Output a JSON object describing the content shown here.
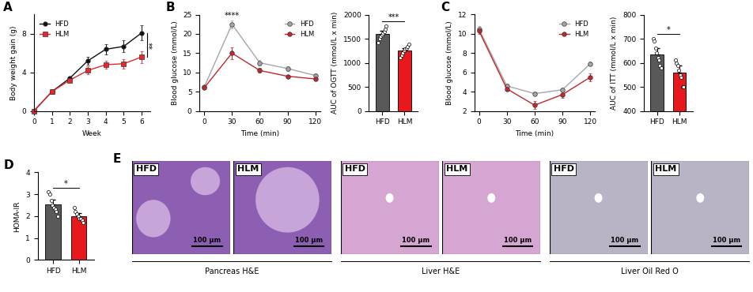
{
  "chart_data": [
    {
      "panel_label": "A",
      "type": "line",
      "x_label": "Week",
      "y_label": "Body weight gain (g)",
      "x": [
        0,
        1,
        2,
        3,
        4,
        5,
        6
      ],
      "xlim": [
        0,
        6.5
      ],
      "xticks": [
        0,
        1,
        2,
        3,
        4,
        5,
        6
      ],
      "ylim": [
        0,
        10
      ],
      "yticks": [
        0,
        4,
        8
      ],
      "legend": "upper left",
      "series": [
        {
          "name": "HFD",
          "color": "#111111",
          "marker": "circle",
          "values": [
            0,
            2.0,
            3.4,
            5.2,
            6.4,
            6.7,
            8.1
          ],
          "errors": [
            0,
            0.2,
            0.2,
            0.4,
            0.5,
            0.6,
            0.8
          ]
        },
        {
          "name": "HLM",
          "color": "#e8282b",
          "marker": "square",
          "values": [
            0,
            2.0,
            3.2,
            4.2,
            4.8,
            4.9,
            5.6
          ],
          "errors": [
            0,
            0.2,
            0.2,
            0.4,
            0.4,
            0.5,
            0.6
          ]
        }
      ],
      "annotation": {
        "text": "**",
        "x": 6
      }
    },
    {
      "panel_label": "B",
      "type": "line",
      "x_label": "Time (min)",
      "y_label": "Blood glucose (mmol/L)",
      "x": [
        0,
        30,
        60,
        90,
        120
      ],
      "xlim": [
        -5,
        125
      ],
      "xticks": [
        0,
        30,
        60,
        90,
        120
      ],
      "ylim": [
        0,
        25
      ],
      "yticks": [
        0,
        5,
        10,
        15,
        20,
        25
      ],
      "legend": "upper right",
      "series": [
        {
          "name": "HFD",
          "color": "#a6a6a6",
          "marker": "circle",
          "values": [
            6.2,
            22.5,
            12.5,
            11.0,
            9.2
          ],
          "errors": [
            0.3,
            1.0,
            0.7,
            0.6,
            0.5
          ]
        },
        {
          "name": "HLM",
          "color": "#c0282b",
          "marker": "circle",
          "values": [
            6.0,
            15.0,
            10.5,
            9.0,
            8.3
          ],
          "errors": [
            0.3,
            1.5,
            0.6,
            0.4,
            0.4
          ]
        }
      ],
      "annotation": {
        "text": "****",
        "x": 30
      }
    },
    {
      "type": "bar",
      "y_label": "AUC of OGTT (mmol/L x min)",
      "categories": [
        "HFD",
        "HLM"
      ],
      "values": [
        1600,
        1250
      ],
      "errors": [
        60,
        50
      ],
      "colors": [
        "#595959",
        "#e8191c"
      ],
      "points": [
        [
          1420,
          1500,
          1550,
          1580,
          1620,
          1650,
          1700,
          1760
        ],
        [
          1100,
          1150,
          1200,
          1250,
          1280,
          1300,
          1330,
          1390
        ]
      ],
      "ylim": [
        0,
        2000
      ],
      "yticks": [
        0,
        500,
        1000,
        1500,
        2000
      ],
      "annotation": {
        "text": "***"
      }
    },
    {
      "panel_label": "C",
      "type": "line",
      "x_label": "Time (min)",
      "y_label": "Blood glucose (mmol/L)",
      "x": [
        0,
        30,
        60,
        90,
        120
      ],
      "xlim": [
        -5,
        125
      ],
      "xticks": [
        0,
        30,
        60,
        90,
        120
      ],
      "ylim": [
        2,
        12
      ],
      "yticks": [
        2,
        4,
        6,
        8,
        10,
        12
      ],
      "legend": "upper right",
      "series": [
        {
          "name": "HFD",
          "color": "#a6a6a6",
          "marker": "circle",
          "values": [
            10.5,
            4.6,
            3.8,
            4.2,
            6.9
          ],
          "errors": [
            0.3,
            0.2,
            0.2,
            0.2,
            0.2
          ]
        },
        {
          "name": "HLM",
          "color": "#c0282b",
          "marker": "circle",
          "values": [
            10.3,
            4.3,
            2.6,
            3.7,
            5.5
          ],
          "errors": [
            0.3,
            0.2,
            0.4,
            0.3,
            0.4
          ]
        }
      ]
    },
    {
      "type": "bar",
      "y_label": "AUC of ITT (mmol/L x min)",
      "categories": [
        "HFD",
        "HLM"
      ],
      "values": [
        635,
        558
      ],
      "errors": [
        25,
        30
      ],
      "colors": [
        "#595959",
        "#e8191c"
      ],
      "points": [
        [
          700,
          690,
          660,
          640,
          620,
          610,
          590,
          580
        ],
        [
          610,
          600,
          590,
          570,
          550,
          540,
          500,
          500
        ]
      ],
      "ylim": [
        400,
        800
      ],
      "yticks": [
        400,
        500,
        600,
        700,
        800
      ],
      "annotation": {
        "text": "*"
      }
    },
    {
      "panel_label": "D",
      "type": "bar",
      "y_label": "HOMA-IR",
      "categories": [
        "HFD",
        "HLM"
      ],
      "values": [
        2.55,
        2.0
      ],
      "errors": [
        0.2,
        0.12
      ],
      "colors": [
        "#595959",
        "#e8191c"
      ],
      "points": [
        [
          3.1,
          3.0,
          2.7,
          2.5,
          2.4,
          2.3,
          2.2,
          2.0
        ],
        [
          2.4,
          2.2,
          2.1,
          2.0,
          1.9,
          1.9,
          1.8,
          1.7
        ]
      ],
      "ylim": [
        0,
        4
      ],
      "yticks": [
        0,
        1,
        2,
        3,
        4
      ],
      "annotation": {
        "text": "*"
      }
    }
  ],
  "image_panel": {
    "panel_label": "E",
    "scale_bar": "100 µm",
    "groups": [
      {
        "label": "Pancreas H&E",
        "images": [
          "HFD",
          "HLM"
        ]
      },
      {
        "label": "Liver H&E",
        "images": [
          "HFD",
          "HLM"
        ]
      },
      {
        "label": "Liver Oil Red O",
        "images": [
          "HFD",
          "HLM"
        ]
      }
    ]
  }
}
